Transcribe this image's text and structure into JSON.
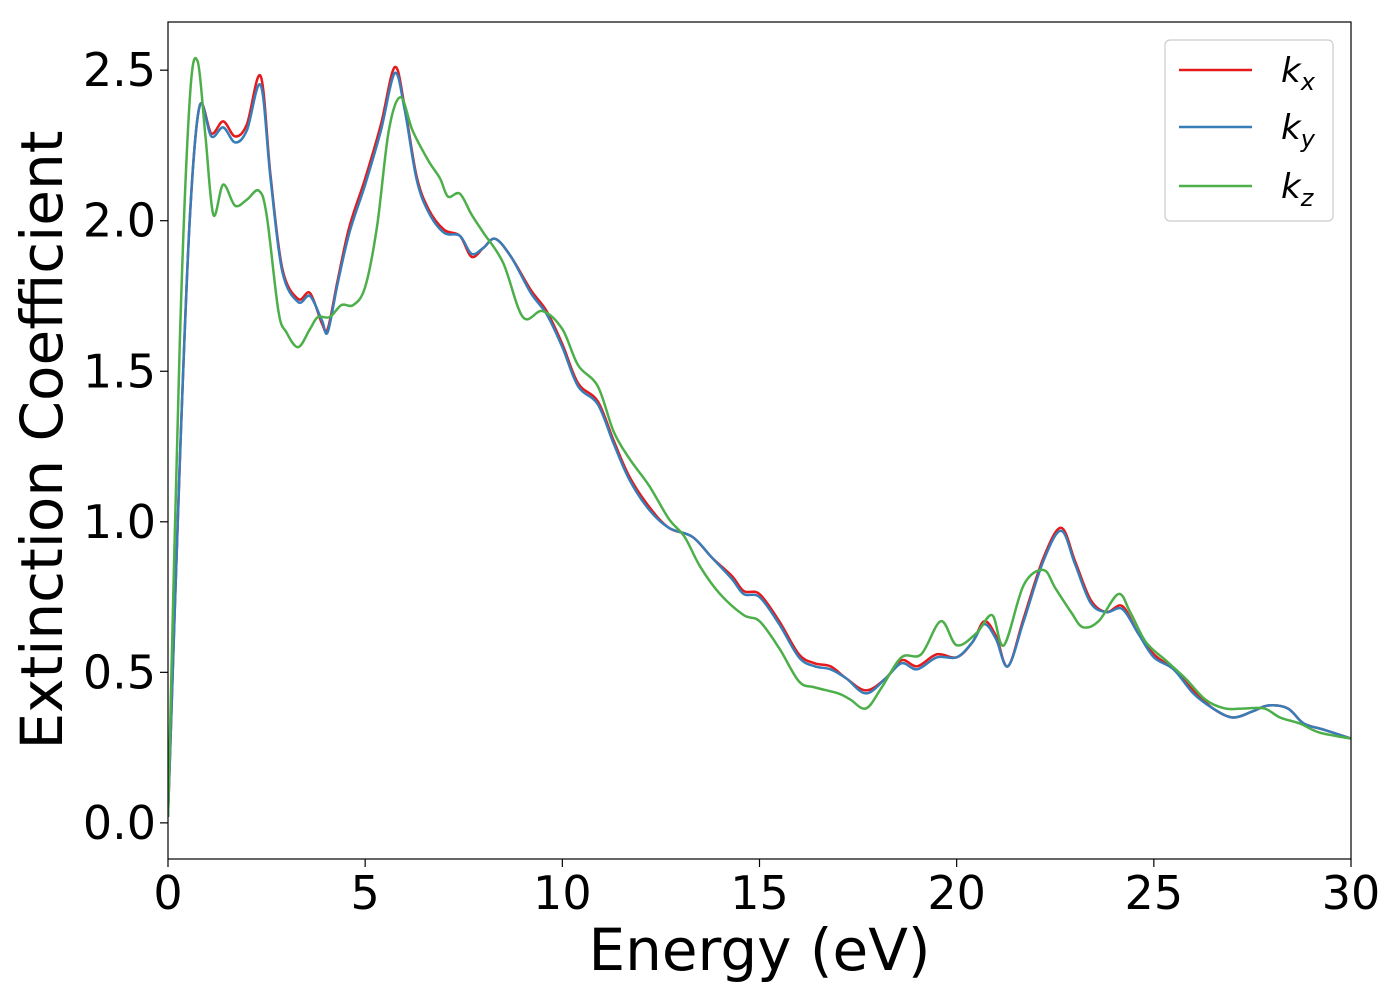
{
  "chart_data": {
    "type": "line",
    "title": "",
    "xlabel": "Energy (eV)",
    "ylabel": "Extinction Coefficient",
    "xlim": [
      0,
      30
    ],
    "ylim": [
      -0.12,
      2.66
    ],
    "xticks": [
      0,
      5,
      10,
      15,
      20,
      25,
      30
    ],
    "xtick_labels": [
      "0",
      "5",
      "10",
      "15",
      "20",
      "25",
      "30"
    ],
    "yticks": [
      0.0,
      0.5,
      1.0,
      1.5,
      2.0,
      2.5
    ],
    "ytick_labels": [
      "0.0",
      "0.5",
      "1.0",
      "1.5",
      "2.0",
      "2.5"
    ],
    "grid": false,
    "legend_position": "top-right",
    "series": [
      {
        "name": "k",
        "subscript": "x",
        "color": "#e41a1c",
        "points": [
          [
            0,
            0.02
          ],
          [
            0.3,
            1.2
          ],
          [
            0.55,
            2.0
          ],
          [
            0.8,
            2.38
          ],
          [
            1.1,
            2.29
          ],
          [
            1.4,
            2.33
          ],
          [
            1.7,
            2.28
          ],
          [
            2.0,
            2.32
          ],
          [
            2.35,
            2.48
          ],
          [
            2.6,
            2.15
          ],
          [
            2.9,
            1.84
          ],
          [
            3.3,
            1.74
          ],
          [
            3.6,
            1.76
          ],
          [
            3.9,
            1.66
          ],
          [
            4.05,
            1.64
          ],
          [
            4.3,
            1.8
          ],
          [
            4.6,
            1.98
          ],
          [
            5.0,
            2.14
          ],
          [
            5.4,
            2.32
          ],
          [
            5.75,
            2.51
          ],
          [
            6.0,
            2.38
          ],
          [
            6.3,
            2.15
          ],
          [
            6.6,
            2.04
          ],
          [
            7.0,
            1.97
          ],
          [
            7.4,
            1.95
          ],
          [
            7.7,
            1.88
          ],
          [
            8.0,
            1.91
          ],
          [
            8.3,
            1.94
          ],
          [
            8.7,
            1.88
          ],
          [
            9.2,
            1.77
          ],
          [
            9.6,
            1.7
          ],
          [
            10.0,
            1.59
          ],
          [
            10.4,
            1.46
          ],
          [
            10.9,
            1.4
          ],
          [
            11.3,
            1.27
          ],
          [
            11.7,
            1.15
          ],
          [
            12.2,
            1.05
          ],
          [
            12.7,
            0.98
          ],
          [
            13.3,
            0.95
          ],
          [
            13.8,
            0.88
          ],
          [
            14.3,
            0.82
          ],
          [
            14.6,
            0.77
          ],
          [
            15.0,
            0.76
          ],
          [
            15.5,
            0.67
          ],
          [
            16.0,
            0.56
          ],
          [
            16.4,
            0.53
          ],
          [
            16.8,
            0.52
          ],
          [
            17.2,
            0.48
          ],
          [
            17.7,
            0.44
          ],
          [
            18.2,
            0.48
          ],
          [
            18.6,
            0.54
          ],
          [
            19.0,
            0.52
          ],
          [
            19.5,
            0.56
          ],
          [
            20.0,
            0.55
          ],
          [
            20.4,
            0.6
          ],
          [
            20.7,
            0.67
          ],
          [
            21.0,
            0.62
          ],
          [
            21.3,
            0.52
          ],
          [
            21.7,
            0.68
          ],
          [
            22.2,
            0.88
          ],
          [
            22.65,
            0.98
          ],
          [
            23.0,
            0.87
          ],
          [
            23.4,
            0.74
          ],
          [
            23.8,
            0.7
          ],
          [
            24.2,
            0.72
          ],
          [
            24.6,
            0.63
          ],
          [
            25.0,
            0.56
          ],
          [
            25.5,
            0.51
          ],
          [
            26.0,
            0.44
          ],
          [
            26.5,
            0.38
          ],
          [
            27.0,
            0.35
          ],
          [
            27.5,
            0.37
          ],
          [
            27.9,
            0.39
          ],
          [
            28.4,
            0.38
          ],
          [
            28.8,
            0.33
          ],
          [
            29.3,
            0.31
          ],
          [
            30.0,
            0.28
          ]
        ]
      },
      {
        "name": "k",
        "subscript": "y",
        "color": "#377eb8",
        "points": [
          [
            0,
            0.02
          ],
          [
            0.3,
            1.2
          ],
          [
            0.55,
            2.0
          ],
          [
            0.8,
            2.38
          ],
          [
            1.1,
            2.28
          ],
          [
            1.4,
            2.31
          ],
          [
            1.7,
            2.26
          ],
          [
            2.0,
            2.3
          ],
          [
            2.35,
            2.45
          ],
          [
            2.6,
            2.14
          ],
          [
            2.9,
            1.83
          ],
          [
            3.3,
            1.73
          ],
          [
            3.6,
            1.75
          ],
          [
            3.9,
            1.67
          ],
          [
            4.05,
            1.63
          ],
          [
            4.3,
            1.79
          ],
          [
            4.6,
            1.96
          ],
          [
            5.0,
            2.12
          ],
          [
            5.4,
            2.3
          ],
          [
            5.75,
            2.49
          ],
          [
            6.0,
            2.37
          ],
          [
            6.3,
            2.14
          ],
          [
            6.6,
            2.03
          ],
          [
            7.0,
            1.96
          ],
          [
            7.4,
            1.95
          ],
          [
            7.7,
            1.89
          ],
          [
            8.0,
            1.91
          ],
          [
            8.3,
            1.94
          ],
          [
            8.7,
            1.88
          ],
          [
            9.2,
            1.76
          ],
          [
            9.6,
            1.69
          ],
          [
            10.0,
            1.58
          ],
          [
            10.4,
            1.45
          ],
          [
            10.9,
            1.39
          ],
          [
            11.3,
            1.26
          ],
          [
            11.7,
            1.14
          ],
          [
            12.2,
            1.04
          ],
          [
            12.7,
            0.98
          ],
          [
            13.3,
            0.95
          ],
          [
            13.8,
            0.88
          ],
          [
            14.3,
            0.81
          ],
          [
            14.6,
            0.76
          ],
          [
            15.0,
            0.75
          ],
          [
            15.5,
            0.66
          ],
          [
            16.0,
            0.55
          ],
          [
            16.4,
            0.52
          ],
          [
            16.8,
            0.51
          ],
          [
            17.2,
            0.48
          ],
          [
            17.7,
            0.43
          ],
          [
            18.2,
            0.48
          ],
          [
            18.6,
            0.53
          ],
          [
            19.0,
            0.51
          ],
          [
            19.5,
            0.55
          ],
          [
            20.0,
            0.55
          ],
          [
            20.4,
            0.6
          ],
          [
            20.7,
            0.66
          ],
          [
            21.0,
            0.61
          ],
          [
            21.3,
            0.52
          ],
          [
            21.7,
            0.67
          ],
          [
            22.2,
            0.87
          ],
          [
            22.65,
            0.97
          ],
          [
            23.0,
            0.86
          ],
          [
            23.4,
            0.73
          ],
          [
            23.8,
            0.7
          ],
          [
            24.2,
            0.71
          ],
          [
            24.6,
            0.63
          ],
          [
            25.0,
            0.55
          ],
          [
            25.5,
            0.51
          ],
          [
            26.0,
            0.43
          ],
          [
            26.5,
            0.38
          ],
          [
            27.0,
            0.35
          ],
          [
            27.5,
            0.37
          ],
          [
            27.9,
            0.39
          ],
          [
            28.4,
            0.38
          ],
          [
            28.8,
            0.33
          ],
          [
            29.3,
            0.31
          ],
          [
            30.0,
            0.28
          ]
        ]
      },
      {
        "name": "k",
        "subscript": "z",
        "color": "#4daf4a",
        "points": [
          [
            0,
            0.02
          ],
          [
            0.3,
            1.6
          ],
          [
            0.55,
            2.4
          ],
          [
            0.75,
            2.53
          ],
          [
            0.95,
            2.28
          ],
          [
            1.15,
            2.02
          ],
          [
            1.4,
            2.12
          ],
          [
            1.7,
            2.05
          ],
          [
            2.0,
            2.07
          ],
          [
            2.3,
            2.1
          ],
          [
            2.5,
            2.02
          ],
          [
            2.8,
            1.7
          ],
          [
            3.0,
            1.63
          ],
          [
            3.3,
            1.58
          ],
          [
            3.6,
            1.64
          ],
          [
            3.8,
            1.68
          ],
          [
            4.1,
            1.68
          ],
          [
            4.4,
            1.72
          ],
          [
            4.7,
            1.72
          ],
          [
            5.0,
            1.78
          ],
          [
            5.3,
            1.98
          ],
          [
            5.6,
            2.3
          ],
          [
            5.9,
            2.41
          ],
          [
            6.2,
            2.3
          ],
          [
            6.6,
            2.2
          ],
          [
            6.9,
            2.14
          ],
          [
            7.1,
            2.08
          ],
          [
            7.4,
            2.09
          ],
          [
            7.7,
            2.02
          ],
          [
            8.0,
            1.96
          ],
          [
            8.5,
            1.86
          ],
          [
            9.0,
            1.68
          ],
          [
            9.5,
            1.7
          ],
          [
            10.0,
            1.64
          ],
          [
            10.4,
            1.52
          ],
          [
            10.9,
            1.45
          ],
          [
            11.3,
            1.3
          ],
          [
            11.7,
            1.21
          ],
          [
            12.2,
            1.12
          ],
          [
            12.7,
            1.01
          ],
          [
            13.1,
            0.95
          ],
          [
            13.5,
            0.85
          ],
          [
            14.0,
            0.76
          ],
          [
            14.6,
            0.69
          ],
          [
            15.0,
            0.67
          ],
          [
            15.5,
            0.58
          ],
          [
            16.0,
            0.47
          ],
          [
            16.4,
            0.45
          ],
          [
            17.0,
            0.43
          ],
          [
            17.3,
            0.41
          ],
          [
            17.7,
            0.38
          ],
          [
            18.1,
            0.45
          ],
          [
            18.6,
            0.55
          ],
          [
            19.1,
            0.56
          ],
          [
            19.6,
            0.67
          ],
          [
            20.0,
            0.59
          ],
          [
            20.5,
            0.63
          ],
          [
            20.9,
            0.69
          ],
          [
            21.2,
            0.59
          ],
          [
            21.7,
            0.79
          ],
          [
            22.2,
            0.84
          ],
          [
            22.5,
            0.78
          ],
          [
            22.9,
            0.7
          ],
          [
            23.2,
            0.65
          ],
          [
            23.6,
            0.67
          ],
          [
            24.1,
            0.76
          ],
          [
            24.4,
            0.7
          ],
          [
            24.8,
            0.6
          ],
          [
            25.3,
            0.54
          ],
          [
            25.8,
            0.48
          ],
          [
            26.3,
            0.41
          ],
          [
            26.8,
            0.38
          ],
          [
            27.3,
            0.38
          ],
          [
            27.8,
            0.38
          ],
          [
            28.2,
            0.35
          ],
          [
            28.7,
            0.33
          ],
          [
            29.2,
            0.3
          ],
          [
            30.0,
            0.28
          ]
        ]
      }
    ]
  }
}
